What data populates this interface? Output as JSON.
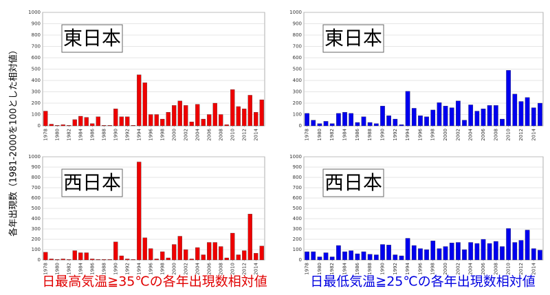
{
  "y_label": "各年出現数（1981-2000を100とした相対値）",
  "captions": [
    {
      "text": "日最高気温≧35℃の各年出現数相対値",
      "color": "#e00000"
    },
    {
      "text": "日最低気温≧25℃の各年出現数相対値",
      "color": "#0000e0"
    }
  ],
  "chart_data": [
    {
      "type": "bar",
      "panel_label": "東日本",
      "color": "#ee0000",
      "x": [
        1978,
        1979,
        1980,
        1981,
        1982,
        1983,
        1984,
        1985,
        1986,
        1987,
        1988,
        1989,
        1990,
        1991,
        1992,
        1993,
        1994,
        1995,
        1996,
        1997,
        1998,
        1999,
        2000,
        2001,
        2002,
        2003,
        2004,
        2005,
        2006,
        2007,
        2008,
        2009,
        2010,
        2011,
        2012,
        2013,
        2014,
        2015
      ],
      "values": [
        130,
        15,
        5,
        10,
        5,
        55,
        85,
        75,
        20,
        80,
        5,
        5,
        150,
        80,
        80,
        5,
        450,
        380,
        100,
        100,
        60,
        120,
        180,
        220,
        180,
        35,
        190,
        60,
        100,
        200,
        100,
        10,
        320,
        170,
        150,
        270,
        120,
        230
      ],
      "xlim": [
        1977.5,
        2015.5
      ],
      "xticks": [
        1978,
        1980,
        1982,
        1984,
        1986,
        1988,
        1990,
        1992,
        1994,
        1996,
        1998,
        2000,
        2002,
        2004,
        2006,
        2008,
        2010,
        2012,
        2014
      ],
      "ylim": [
        0,
        1000
      ],
      "yticks": [
        0,
        100,
        200,
        300,
        400,
        500,
        600,
        700,
        800,
        900,
        1000
      ],
      "grid": true
    },
    {
      "type": "bar",
      "panel_label": "東日本",
      "color": "#0000ee",
      "x": [
        1978,
        1979,
        1980,
        1981,
        1982,
        1983,
        1984,
        1985,
        1986,
        1987,
        1988,
        1989,
        1990,
        1991,
        1992,
        1993,
        1994,
        1995,
        1996,
        1997,
        1998,
        1999,
        2000,
        2001,
        2002,
        2003,
        2004,
        2005,
        2006,
        2007,
        2008,
        2009,
        2010,
        2011,
        2012,
        2013,
        2014,
        2015
      ],
      "values": [
        110,
        50,
        20,
        40,
        20,
        110,
        120,
        110,
        30,
        80,
        30,
        20,
        175,
        90,
        60,
        10,
        305,
        155,
        90,
        80,
        140,
        205,
        175,
        160,
        220,
        50,
        185,
        130,
        150,
        180,
        180,
        60,
        490,
        280,
        215,
        250,
        160,
        200
      ],
      "xlim": [
        1977.5,
        2015.5
      ],
      "xticks": [
        1978,
        1980,
        1982,
        1984,
        1986,
        1988,
        1990,
        1992,
        1994,
        1996,
        1998,
        2000,
        2002,
        2004,
        2006,
        2008,
        2010,
        2012,
        2014
      ],
      "ylim": [
        0,
        1000
      ],
      "yticks": [
        0,
        100,
        200,
        300,
        400,
        500,
        600,
        700,
        800,
        900,
        1000
      ],
      "grid": true
    },
    {
      "type": "bar",
      "panel_label": "西日本",
      "color": "#ee0000",
      "x": [
        1978,
        1979,
        1980,
        1981,
        1982,
        1983,
        1984,
        1985,
        1986,
        1987,
        1988,
        1989,
        1990,
        1991,
        1992,
        1993,
        1994,
        1995,
        1996,
        1997,
        1998,
        1999,
        2000,
        2001,
        2002,
        2003,
        2004,
        2005,
        2006,
        2007,
        2008,
        2009,
        2010,
        2011,
        2012,
        2013,
        2014,
        2015
      ],
      "values": [
        75,
        10,
        5,
        10,
        5,
        90,
        70,
        70,
        10,
        5,
        5,
        5,
        175,
        40,
        10,
        5,
        950,
        215,
        110,
        10,
        80,
        20,
        150,
        230,
        100,
        10,
        120,
        50,
        170,
        170,
        130,
        20,
        260,
        50,
        90,
        445,
        65,
        135
      ],
      "xlim": [
        1977.5,
        2015.5
      ],
      "xticks": [
        1978,
        1980,
        1982,
        1984,
        1986,
        1988,
        1990,
        1992,
        1994,
        1996,
        1998,
        2000,
        2002,
        2004,
        2006,
        2008,
        2010,
        2012,
        2014
      ],
      "ylim": [
        0,
        1000
      ],
      "yticks": [
        0,
        100,
        200,
        300,
        400,
        500,
        600,
        700,
        800,
        900,
        1000
      ],
      "grid": true
    },
    {
      "type": "bar",
      "panel_label": "西日本",
      "color": "#0000ee",
      "x": [
        1978,
        1979,
        1980,
        1981,
        1982,
        1983,
        1984,
        1985,
        1986,
        1987,
        1988,
        1989,
        1990,
        1991,
        1992,
        1993,
        1994,
        1995,
        1996,
        1997,
        1998,
        1999,
        2000,
        2001,
        2002,
        2003,
        2004,
        2005,
        2006,
        2007,
        2008,
        2009,
        2010,
        2011,
        2012,
        2013,
        2014,
        2015
      ],
      "values": [
        80,
        80,
        30,
        70,
        30,
        140,
        80,
        90,
        60,
        80,
        55,
        50,
        150,
        145,
        50,
        40,
        210,
        140,
        110,
        100,
        185,
        110,
        130,
        165,
        170,
        100,
        170,
        160,
        200,
        160,
        180,
        130,
        305,
        170,
        190,
        290,
        110,
        95
      ],
      "xlim": [
        1977.5,
        2015.5
      ],
      "xticks": [
        1978,
        1980,
        1982,
        1984,
        1986,
        1988,
        1990,
        1992,
        1994,
        1996,
        1998,
        2000,
        2002,
        2004,
        2006,
        2008,
        2010,
        2012,
        2014
      ],
      "ylim": [
        0,
        1000
      ],
      "yticks": [
        0,
        100,
        200,
        300,
        400,
        500,
        600,
        700,
        800,
        900,
        1000
      ],
      "grid": true
    }
  ]
}
